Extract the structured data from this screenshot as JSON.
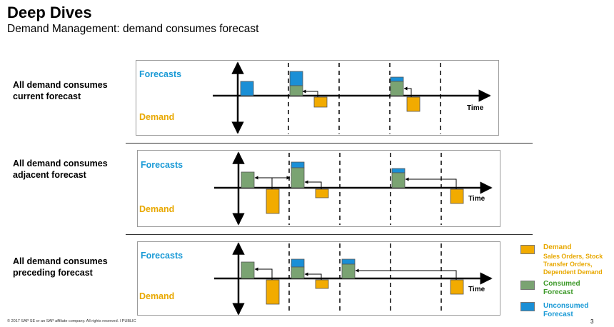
{
  "header": {
    "title": "Deep Dives",
    "subtitle": "Demand Management: demand consumes forecast"
  },
  "rows": [
    {
      "label": "All demand consumes current forecast",
      "forecasts": "Forecasts",
      "demand": "Demand",
      "time": "Time"
    },
    {
      "label": "All demand consumes adjacent forecast",
      "forecasts": "Forecasts",
      "demand": "Demand",
      "time": "Time"
    },
    {
      "label": "All demand consumes preceding forecast",
      "forecasts": "Forecasts",
      "demand": "Demand",
      "time": "Time"
    }
  ],
  "legend": {
    "demand_title": "Demand",
    "demand_sub": "Sales Orders, Stock Transfer Orders, Dependent Demand",
    "consumed": "Consumed Forecast",
    "unconsumed": "Unconsumed Forecast"
  },
  "colors": {
    "forecast_blue": "#1a8fd6",
    "consumed_green": "#7aa372",
    "demand_orange": "#f2ab00",
    "label_blue": "#1a9ad6",
    "label_orange": "#e8a800"
  },
  "footer": {
    "copyright": "© 2017 SAP SE or an SAP affiliate company. All rights reserved.  ǀ  PUBLIC",
    "page": "3"
  }
}
